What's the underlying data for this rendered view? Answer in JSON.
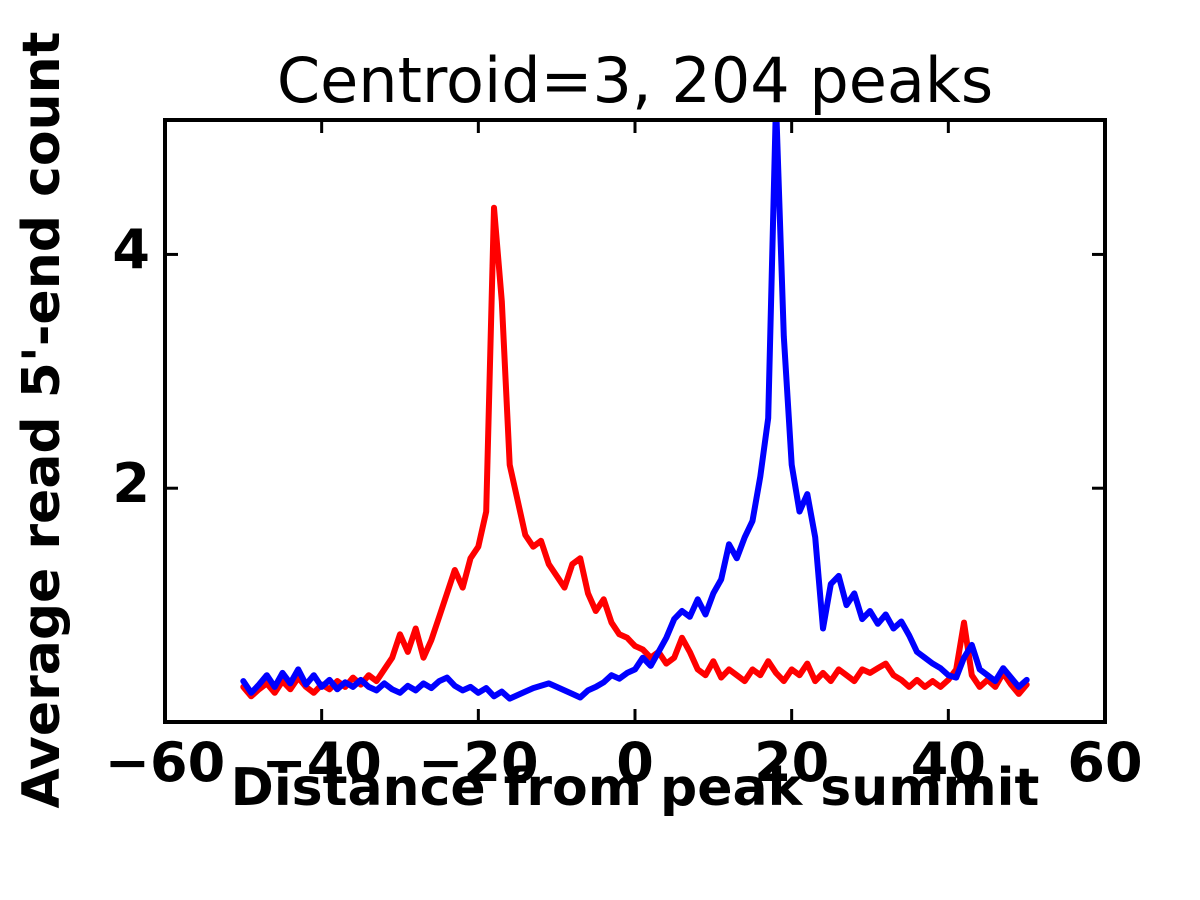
{
  "chart_data": {
    "type": "line",
    "title": "Centroid=3, 204 peaks",
    "xlabel": "Distance from peak summit",
    "ylabel": "Average read 5'-end count",
    "xlim": [
      -60,
      60
    ],
    "ylim": [
      0,
      5.15
    ],
    "grid": false,
    "legend": "none",
    "axis_color": "#000000",
    "x_ticks": {
      "values": [
        -60,
        -40,
        -20,
        0,
        20,
        40,
        60
      ],
      "labels": [
        "−60",
        "−40",
        "−20",
        "0",
        "20",
        "40",
        "60"
      ]
    },
    "y_ticks": {
      "values": [
        2,
        4
      ],
      "labels": [
        "2",
        "4"
      ]
    },
    "x": [
      -50,
      -49,
      -48,
      -47,
      -46,
      -45,
      -44,
      -43,
      -42,
      -41,
      -40,
      -39,
      -38,
      -37,
      -36,
      -35,
      -34,
      -33,
      -32,
      -31,
      -30,
      -29,
      -28,
      -27,
      -26,
      -25,
      -24,
      -23,
      -22,
      -21,
      -20,
      -19,
      -18,
      -17,
      -16,
      -15,
      -14,
      -13,
      -12,
      -11,
      -10,
      -9,
      -8,
      -7,
      -6,
      -5,
      -4,
      -3,
      -2,
      -1,
      0,
      1,
      2,
      3,
      4,
      5,
      6,
      7,
      8,
      9,
      10,
      11,
      12,
      13,
      14,
      15,
      16,
      17,
      18,
      19,
      20,
      21,
      22,
      23,
      24,
      25,
      26,
      27,
      28,
      29,
      30,
      31,
      32,
      33,
      34,
      35,
      36,
      37,
      38,
      39,
      40,
      41,
      42,
      43,
      44,
      45,
      46,
      47,
      48,
      49,
      50
    ],
    "series": [
      {
        "name": "red-line",
        "color": "#ff0000",
        "values": [
          0.3,
          0.22,
          0.28,
          0.33,
          0.25,
          0.35,
          0.28,
          0.38,
          0.3,
          0.25,
          0.32,
          0.28,
          0.35,
          0.3,
          0.38,
          0.32,
          0.4,
          0.35,
          0.45,
          0.55,
          0.75,
          0.6,
          0.8,
          0.55,
          0.7,
          0.9,
          1.1,
          1.3,
          1.15,
          1.4,
          1.5,
          1.8,
          4.4,
          3.6,
          2.2,
          1.9,
          1.6,
          1.5,
          1.55,
          1.35,
          1.25,
          1.15,
          1.35,
          1.4,
          1.1,
          0.95,
          1.05,
          0.85,
          0.75,
          0.72,
          0.65,
          0.62,
          0.55,
          0.6,
          0.5,
          0.55,
          0.72,
          0.6,
          0.45,
          0.4,
          0.52,
          0.38,
          0.45,
          0.4,
          0.35,
          0.45,
          0.4,
          0.52,
          0.42,
          0.35,
          0.45,
          0.4,
          0.5,
          0.35,
          0.42,
          0.35,
          0.45,
          0.4,
          0.35,
          0.45,
          0.42,
          0.46,
          0.5,
          0.4,
          0.36,
          0.3,
          0.36,
          0.3,
          0.35,
          0.3,
          0.36,
          0.45,
          0.85,
          0.4,
          0.3,
          0.36,
          0.3,
          0.42,
          0.32,
          0.24,
          0.32
        ]
      },
      {
        "name": "blue-line",
        "color": "#0000ff",
        "values": [
          0.35,
          0.25,
          0.32,
          0.4,
          0.3,
          0.42,
          0.33,
          0.45,
          0.32,
          0.4,
          0.3,
          0.36,
          0.28,
          0.34,
          0.3,
          0.36,
          0.3,
          0.27,
          0.33,
          0.28,
          0.25,
          0.31,
          0.27,
          0.33,
          0.29,
          0.35,
          0.38,
          0.31,
          0.27,
          0.3,
          0.25,
          0.29,
          0.22,
          0.26,
          0.2,
          0.23,
          0.26,
          0.29,
          0.31,
          0.33,
          0.3,
          0.27,
          0.24,
          0.21,
          0.27,
          0.3,
          0.34,
          0.4,
          0.37,
          0.42,
          0.45,
          0.55,
          0.48,
          0.6,
          0.72,
          0.88,
          0.95,
          0.9,
          1.05,
          0.92,
          1.1,
          1.22,
          1.52,
          1.4,
          1.58,
          1.72,
          2.1,
          2.6,
          5.3,
          3.3,
          2.2,
          1.8,
          1.95,
          1.58,
          0.8,
          1.18,
          1.25,
          1.0,
          1.1,
          0.88,
          0.95,
          0.84,
          0.92,
          0.8,
          0.86,
          0.74,
          0.6,
          0.55,
          0.5,
          0.46,
          0.4,
          0.38,
          0.55,
          0.66,
          0.45,
          0.4,
          0.35,
          0.46,
          0.38,
          0.3,
          0.36
        ]
      }
    ]
  }
}
